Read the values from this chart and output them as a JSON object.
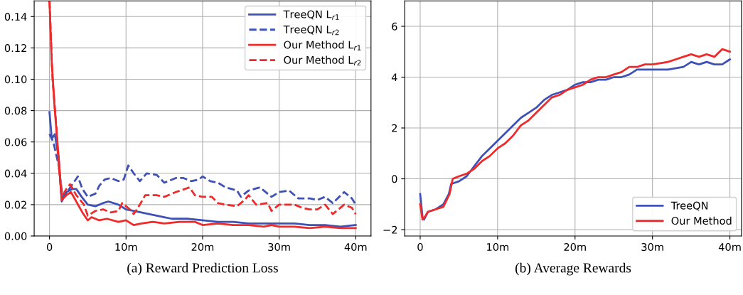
{
  "chart_data": [
    {
      "type": "line",
      "xlabel": "(a) Reward Prediction Loss",
      "xlim": [
        -2,
        42
      ],
      "ylim": [
        0,
        0.15
      ],
      "xticks": [
        0,
        {
          "value": 10,
          "label": "10m"
        },
        {
          "value": 20,
          "label": "20m"
        },
        {
          "value": 30,
          "label": "30m"
        },
        {
          "value": 40,
          "label": "40m"
        }
      ],
      "yticks": [
        {
          "value": 0,
          "label": "0.00"
        },
        {
          "value": 0.02,
          "label": "0.02"
        },
        {
          "value": 0.04,
          "label": "0.04"
        },
        {
          "value": 0.06,
          "label": "0.06"
        },
        {
          "value": 0.08,
          "label": "0.08"
        },
        {
          "value": 0.1,
          "label": "0.10"
        },
        {
          "value": 0.12,
          "label": "0.12"
        },
        {
          "value": 0.14,
          "label": "0.14"
        }
      ],
      "grid": true,
      "legend": "top right",
      "series": [
        {
          "name": "TreeQN L$_{r1}$",
          "color": "#3f51b5",
          "line_style": "solid",
          "x": [
            0,
            0.3,
            0.7,
            1.2,
            1.6,
            2.2,
            3,
            3.5,
            4.2,
            5,
            6,
            7,
            7.7,
            9,
            10,
            11,
            12,
            13,
            14,
            15,
            16,
            18,
            20,
            22,
            24,
            26,
            28,
            30,
            32,
            34,
            36,
            38,
            40
          ],
          "values": [
            0.079,
            0.062,
            0.065,
            0.05,
            0.022,
            0.028,
            0.03,
            0.03,
            0.025,
            0.02,
            0.019,
            0.021,
            0.022,
            0.02,
            0.017,
            0.016,
            0.015,
            0.014,
            0.013,
            0.012,
            0.011,
            0.011,
            0.01,
            0.009,
            0.009,
            0.008,
            0.008,
            0.008,
            0.008,
            0.007,
            0.007,
            0.006,
            0.007
          ]
        },
        {
          "name": "TreeQN L$_{r2}$",
          "color": "#3f51b5",
          "line_style": "dashed",
          "x": [
            0,
            0.5,
            1.2,
            1.7,
            2.3,
            3,
            3.7,
            4.3,
            5,
            6,
            6.5,
            7.2,
            8,
            9,
            9.7,
            10.3,
            11,
            11.8,
            12.7,
            14,
            15,
            16.5,
            17.5,
            18.5,
            19.5,
            20,
            21,
            22,
            23,
            24.5,
            25,
            26,
            27.5,
            29,
            30,
            31.3,
            32.5,
            34,
            35,
            36,
            37,
            38.5,
            39.5,
            40
          ],
          "values": [
            0.065,
            0.06,
            0.045,
            0.025,
            0.028,
            0.033,
            0.038,
            0.03,
            0.025,
            0.027,
            0.032,
            0.036,
            0.037,
            0.035,
            0.036,
            0.045,
            0.04,
            0.035,
            0.04,
            0.039,
            0.034,
            0.037,
            0.037,
            0.035,
            0.036,
            0.038,
            0.035,
            0.034,
            0.031,
            0.029,
            0.025,
            0.029,
            0.031,
            0.025,
            0.028,
            0.029,
            0.024,
            0.024,
            0.023,
            0.025,
            0.021,
            0.028,
            0.024,
            0.02
          ]
        },
        {
          "name": "Our Method L$_{r1}$",
          "color": "#ee2a2a",
          "line_style": "solid",
          "x": [
            0,
            0.3,
            0.7,
            1.2,
            1.6,
            2.2,
            2.8,
            3.5,
            4.3,
            5,
            5.5,
            6.5,
            7.5,
            9,
            10,
            11,
            12,
            13.5,
            15,
            17,
            19,
            20,
            22,
            24,
            26,
            28,
            29,
            30,
            32,
            34,
            36,
            38,
            40
          ],
          "values": [
            0.15,
            0.11,
            0.08,
            0.05,
            0.023,
            0.026,
            0.028,
            0.022,
            0.015,
            0.01,
            0.012,
            0.01,
            0.011,
            0.009,
            0.01,
            0.007,
            0.008,
            0.009,
            0.008,
            0.009,
            0.009,
            0.007,
            0.008,
            0.007,
            0.007,
            0.006,
            0.007,
            0.006,
            0.006,
            0.005,
            0.006,
            0.005,
            0.005
          ]
        },
        {
          "name": "Our Method L$_{r2}$",
          "color": "#ee2a2a",
          "line_style": "dashed",
          "x": [
            0,
            0.4,
            0.9,
            1.2,
            1.6,
            2.2,
            2.7,
            3.5,
            4.5,
            5,
            6,
            7,
            8,
            9,
            9.5,
            10.5,
            11,
            11.8,
            12.5,
            14,
            15,
            16.5,
            18.3,
            19,
            20,
            21.2,
            22,
            23,
            24.5,
            25.5,
            26,
            27,
            28.5,
            29,
            30,
            32,
            33,
            34,
            35,
            36,
            37,
            38.5,
            39.5,
            40
          ],
          "values": [
            0.15,
            0.1,
            0.07,
            0.045,
            0.025,
            0.03,
            0.033,
            0.026,
            0.02,
            0.013,
            0.016,
            0.017,
            0.015,
            0.016,
            0.021,
            0.017,
            0.014,
            0.02,
            0.026,
            0.026,
            0.025,
            0.028,
            0.031,
            0.026,
            0.025,
            0.025,
            0.021,
            0.02,
            0.019,
            0.023,
            0.026,
            0.02,
            0.021,
            0.016,
            0.02,
            0.02,
            0.018,
            0.017,
            0.017,
            0.02,
            0.014,
            0.02,
            0.018,
            0.014
          ]
        }
      ]
    },
    {
      "type": "line",
      "xlabel": "(b) Average Rewards",
      "xlim": [
        -2,
        41.5
      ],
      "ylim": [
        -2.25,
        7
      ],
      "xticks": [
        0,
        {
          "value": 10,
          "label": "10m"
        },
        {
          "value": 20,
          "label": "20m"
        },
        {
          "value": 30,
          "label": "30m"
        },
        {
          "value": 40,
          "label": "40m"
        }
      ],
      "yticks": [
        {
          "value": -2,
          "label": "−2"
        },
        0,
        2,
        4,
        6
      ],
      "grid": true,
      "legend": "bottom right",
      "series": [
        {
          "name": "TreeQN",
          "color": "#3f51b5",
          "line_style": "solid",
          "x": [
            0,
            0.3,
            0.5,
            1,
            2,
            3,
            3.7,
            4,
            5,
            6,
            7,
            8,
            9,
            10,
            11,
            12,
            13,
            14,
            15,
            16,
            17,
            18,
            19,
            20,
            21,
            22,
            23,
            24,
            25,
            26,
            27,
            28,
            30,
            32,
            34,
            35,
            36,
            37,
            38,
            39,
            40
          ],
          "values": [
            -0.6,
            -1.5,
            -1.6,
            -1.3,
            -1.2,
            -1.0,
            -0.6,
            -0.2,
            -0.1,
            0.1,
            0.5,
            0.9,
            1.2,
            1.5,
            1.8,
            2.1,
            2.4,
            2.6,
            2.8,
            3.1,
            3.3,
            3.4,
            3.5,
            3.7,
            3.8,
            3.8,
            3.9,
            3.9,
            4.0,
            4.0,
            4.1,
            4.3,
            4.3,
            4.3,
            4.4,
            4.6,
            4.5,
            4.6,
            4.5,
            4.5,
            4.7
          ]
        },
        {
          "name": "Our Method",
          "color": "#ee2a2a",
          "line_style": "solid",
          "x": [
            0,
            0.3,
            0.6,
            1,
            2,
            3,
            3.8,
            4.2,
            5,
            6,
            7,
            8,
            9,
            10,
            11,
            12,
            13,
            14,
            15,
            16,
            17,
            18,
            19,
            20,
            21,
            22,
            23,
            24,
            25,
            26,
            27,
            28,
            29,
            30,
            32,
            33,
            34,
            35,
            36,
            37,
            38,
            39,
            40
          ],
          "values": [
            -1.0,
            -1.6,
            -1.5,
            -1.3,
            -1.2,
            -1.1,
            -0.6,
            0.0,
            0.1,
            0.2,
            0.4,
            0.7,
            0.9,
            1.2,
            1.4,
            1.7,
            2.1,
            2.3,
            2.6,
            2.9,
            3.2,
            3.3,
            3.5,
            3.6,
            3.7,
            3.9,
            4.0,
            4.0,
            4.1,
            4.2,
            4.4,
            4.4,
            4.5,
            4.5,
            4.6,
            4.7,
            4.8,
            4.9,
            4.8,
            4.9,
            4.8,
            5.1,
            5.0
          ]
        }
      ]
    }
  ]
}
